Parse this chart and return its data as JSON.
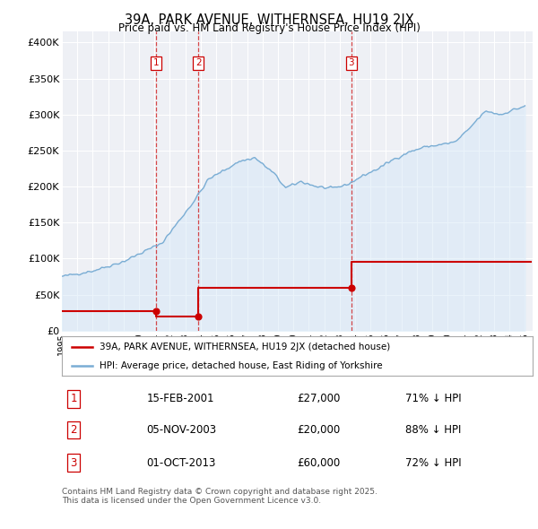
{
  "title": "39A, PARK AVENUE, WITHERNSEA, HU19 2JX",
  "subtitle": "Price paid vs. HM Land Registry's House Price Index (HPI)",
  "ylabel_ticks": [
    "£0",
    "£50K",
    "£100K",
    "£150K",
    "£200K",
    "£250K",
    "£300K",
    "£350K",
    "£400K"
  ],
  "ytick_values": [
    0,
    50000,
    100000,
    150000,
    200000,
    250000,
    300000,
    350000,
    400000
  ],
  "ylim": [
    0,
    415000
  ],
  "xlim_start": 1995.0,
  "xlim_end": 2025.5,
  "hpi_color": "#7aadd4",
  "hpi_fill_color": "#d6e8f7",
  "price_color": "#cc0000",
  "background_color": "#eef0f5",
  "grid_color": "#ffffff",
  "legend_label_price": "39A, PARK AVENUE, WITHERNSEA, HU19 2JX (detached house)",
  "legend_label_hpi": "HPI: Average price, detached house, East Riding of Yorkshire",
  "sales": [
    {
      "label": "1",
      "date_str": "15-FEB-2001",
      "date_x": 2001.12,
      "price": 27000,
      "pct": "71% ↓ HPI"
    },
    {
      "label": "2",
      "date_str": "05-NOV-2003",
      "date_x": 2003.84,
      "price": 20000,
      "pct": "88% ↓ HPI"
    },
    {
      "label": "3",
      "date_str": "01-OCT-2013",
      "date_x": 2013.75,
      "price": 60000,
      "pct": "72% ↓ HPI"
    }
  ],
  "footer": "Contains HM Land Registry data © Crown copyright and database right 2025.\nThis data is licensed under the Open Government Licence v3.0.",
  "sale_points_x": [
    2001.12,
    2003.84,
    2013.75
  ],
  "sale_points_y": [
    27000,
    20000,
    60000
  ]
}
